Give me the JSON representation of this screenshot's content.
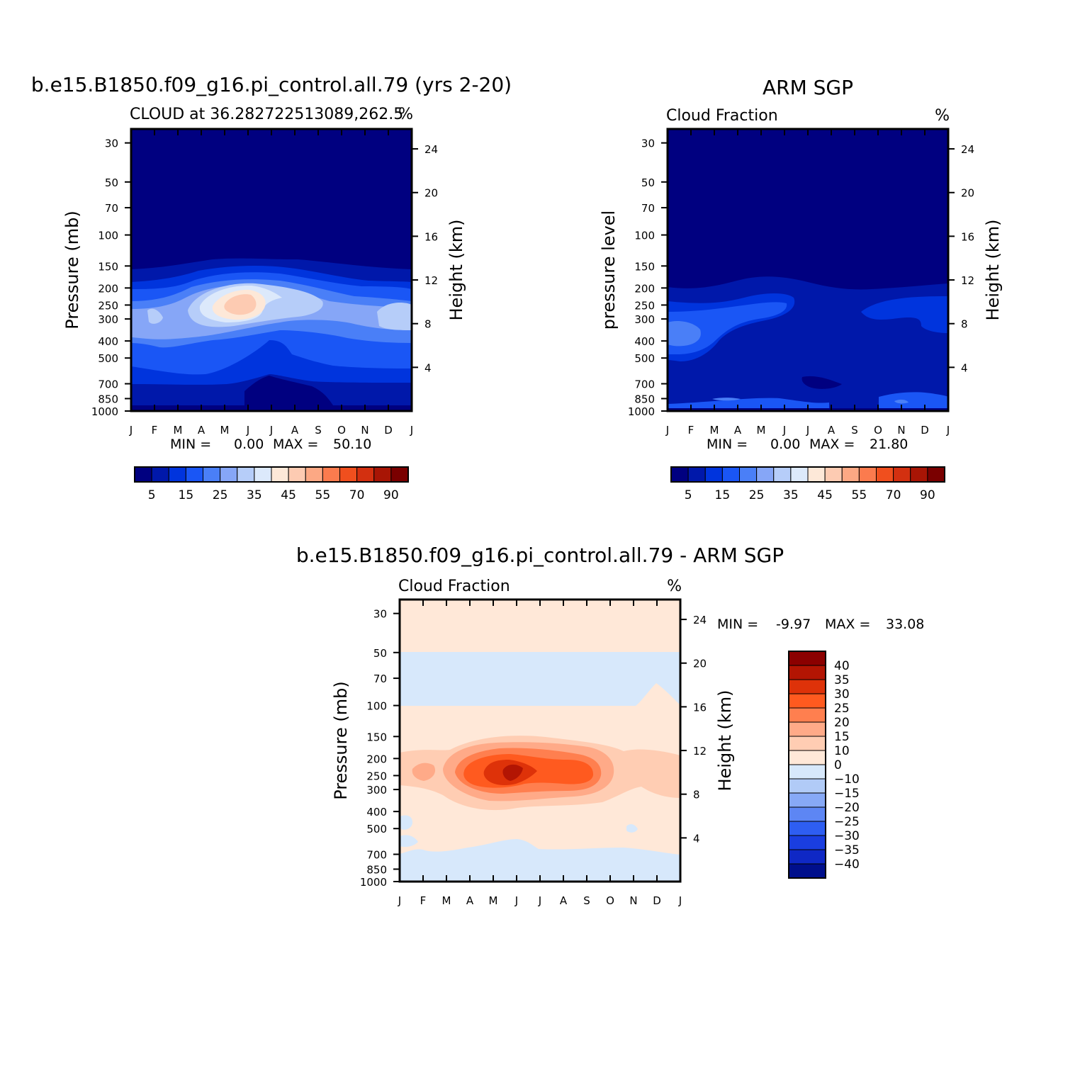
{
  "chart_data": [
    {
      "type": "heatmap",
      "title": "b.e15.B1850.f09_g16.pi_control.all.79 (yrs 2-20)",
      "left_subtitle": "CLOUD at 36.282722513089,262.5",
      "right_subtitle": "%",
      "ylabel": "Pressure (mb)",
      "ylabel_right": "Height (km)",
      "x_ticks": [
        "J",
        "F",
        "M",
        "A",
        "M",
        "J",
        "J",
        "A",
        "S",
        "O",
        "N",
        "D",
        "J"
      ],
      "y_ticks": [
        "30",
        "50",
        "70",
        "100",
        "150",
        "200",
        "250",
        "300",
        "400",
        "500",
        "700",
        "850",
        "1000"
      ],
      "y_right_ticks": [
        "24",
        "20",
        "16",
        "12",
        "8",
        "4"
      ],
      "min_max": {
        "min_label": "MIN =",
        "min": "0.00",
        "max_label": "MAX =",
        "max": "50.10"
      },
      "colorbar_labels": [
        "5",
        "15",
        "25",
        "35",
        "45",
        "55",
        "70",
        "90"
      ],
      "ylim": [
        1000,
        25
      ],
      "grid": false
    },
    {
      "type": "heatmap",
      "title": "ARM SGP",
      "left_subtitle": "Cloud Fraction",
      "right_subtitle": "%",
      "ylabel": "pressure level",
      "ylabel_right": "Height (km)",
      "x_ticks": [
        "J",
        "F",
        "M",
        "A",
        "M",
        "J",
        "J",
        "A",
        "S",
        "O",
        "N",
        "D",
        "J"
      ],
      "y_ticks": [
        "30",
        "50",
        "70",
        "100",
        "150",
        "200",
        "250",
        "300",
        "400",
        "500",
        "700",
        "850",
        "1000"
      ],
      "y_right_ticks": [
        "24",
        "20",
        "16",
        "12",
        "8",
        "4"
      ],
      "min_max": {
        "min_label": "MIN =",
        "min": "0.00",
        "max_label": "MAX =",
        "max": "21.80"
      },
      "colorbar_labels": [
        "5",
        "15",
        "25",
        "35",
        "45",
        "55",
        "70",
        "90"
      ],
      "ylim": [
        1000,
        25
      ],
      "grid": false
    },
    {
      "type": "heatmap",
      "title": "b.e15.B1850.f09_g16.pi_control.all.79 - ARM SGP",
      "left_subtitle": "Cloud Fraction",
      "right_subtitle": "%",
      "ylabel": "Pressure (mb)",
      "ylabel_right": "Height (km)",
      "x_ticks": [
        "J",
        "F",
        "M",
        "A",
        "M",
        "J",
        "J",
        "A",
        "S",
        "O",
        "N",
        "D",
        "J"
      ],
      "y_ticks": [
        "30",
        "50",
        "70",
        "100",
        "150",
        "200",
        "250",
        "300",
        "400",
        "500",
        "700",
        "850",
        "1000"
      ],
      "y_right_ticks": [
        "24",
        "20",
        "16",
        "12",
        "8",
        "4"
      ],
      "min_max": {
        "min_label": "MIN =",
        "min": "-9.97",
        "max_label": "MAX =",
        "max": "33.08"
      },
      "colorbar_labels": [
        "40",
        "35",
        "30",
        "25",
        "20",
        "15",
        "10",
        "0",
        "-10",
        "-15",
        "-20",
        "-25",
        "-30",
        "-35",
        "-40"
      ],
      "ylim": [
        1000,
        25
      ],
      "grid": false
    }
  ],
  "colors": {
    "seq_scale": [
      "#000080",
      "#0018aa",
      "#0034dd",
      "#1a56f5",
      "#4a7ff7",
      "#86a6f7",
      "#b6cdf9",
      "#dce9fb",
      "#fde8d8",
      "#fdcbb2",
      "#fca884",
      "#fb7b4e",
      "#f04f1e",
      "#d33010",
      "#a81505",
      "#7a0000"
    ],
    "diff_scale": [
      "#8b0000",
      "#b31503",
      "#de3209",
      "#ff5a1f",
      "#ff7f4f",
      "#ffaa88",
      "#ffcdb3",
      "#ffe8d8",
      "#d7e8fb",
      "#b1cbf7",
      "#87a9f6",
      "#5d86f4",
      "#2e5ef2",
      "#1a3ee0",
      "#0f28c5",
      "#000f8c"
    ]
  }
}
